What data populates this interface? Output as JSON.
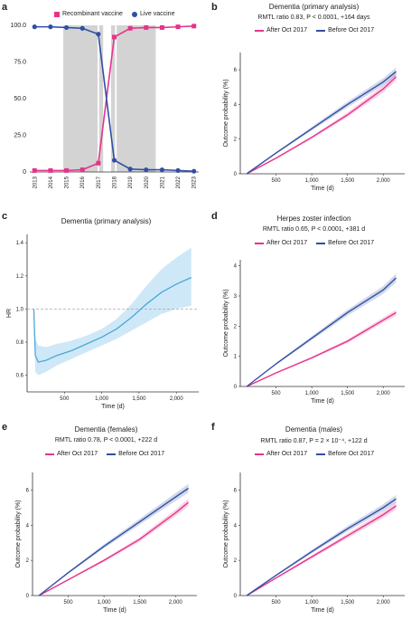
{
  "colors": {
    "recombinant": "#e6338a",
    "live": "#2f4fa3",
    "hr": "#4aa8d8",
    "hr_band": "#cfe8f7",
    "shade": "#d3d3d3"
  },
  "panels": {
    "a": {
      "label": "a"
    },
    "b": {
      "label": "b"
    },
    "c": {
      "label": "c"
    },
    "d": {
      "label": "d"
    },
    "e": {
      "label": "e"
    },
    "f": {
      "label": "f"
    }
  },
  "chart_data": [
    {
      "id": "a",
      "type": "line",
      "series": [
        {
          "name": "Recombinant vaccine",
          "color": "#e6338a",
          "x": [
            2013,
            2014,
            2015,
            2016,
            2017,
            2018,
            2019,
            2020,
            2021,
            2022,
            2023
          ],
          "values": [
            1,
            1,
            1,
            1.5,
            6,
            92,
            98,
            98.5,
            98.5,
            99,
            99.5
          ]
        },
        {
          "name": "Live vaccine",
          "color": "#2f4fa3",
          "x": [
            2013,
            2014,
            2015,
            2016,
            2017,
            2018,
            2019,
            2020,
            2021,
            2022,
            2023
          ],
          "values": [
            99,
            99,
            98.5,
            98,
            94,
            8,
            2,
            1.5,
            1.5,
            1,
            0.5
          ]
        }
      ],
      "shaded_ranges": [
        [
          2014.8,
          2016.95
        ],
        [
          2017.05,
          2017.3
        ],
        [
          2017.8,
          2018.05
        ],
        [
          2018.15,
          2020.6
        ]
      ],
      "xlim": [
        2012.7,
        2023.3
      ],
      "ylim": [
        0,
        100
      ],
      "yticks": [
        "0",
        "25.0",
        "50.0",
        "75.0",
        "100.0"
      ],
      "xticks": [
        "2013",
        "2014",
        "2015",
        "2016",
        "2017",
        "2018",
        "2019",
        "2020",
        "2021",
        "2022",
        "2023"
      ]
    },
    {
      "id": "b",
      "type": "line",
      "title": "Dementia (primary analysis)",
      "stat": "RMTL ratio 0.83, P < 0.0001, +164 days",
      "xlabel": "Time (d)",
      "ylabel": "Outcome probability (%)",
      "xlim": [
        0,
        2300
      ],
      "ylim": [
        0,
        7
      ],
      "xticks": [
        "500",
        "1,000",
        "1,500",
        "2,000"
      ],
      "yticks": [
        "0",
        "2",
        "4",
        "6"
      ],
      "series": [
        {
          "name": "After Oct 2017",
          "x": [
            90,
            500,
            1000,
            1500,
            2000,
            2180
          ],
          "values": [
            0,
            0.9,
            2.1,
            3.4,
            4.9,
            5.6
          ]
        },
        {
          "name": "Before Oct 2017",
          "x": [
            90,
            500,
            1000,
            1500,
            2000,
            2180
          ],
          "values": [
            0,
            1.2,
            2.6,
            4.0,
            5.3,
            5.9
          ]
        }
      ]
    },
    {
      "id": "c",
      "type": "line",
      "title": "Dementia (primary analysis)",
      "xlabel": "Time (d)",
      "ylabel": "HR",
      "xlim": [
        0,
        2300
      ],
      "ylim": [
        0.5,
        1.45
      ],
      "xticks": [
        "500",
        "1,000",
        "1,500",
        "2,000"
      ],
      "yticks": [
        "0.6",
        "0.8",
        "1.0",
        "1.2",
        "1.4"
      ],
      "reference_line": 1.0,
      "series": [
        {
          "name": "HR",
          "x": [
            90,
            110,
            150,
            250,
            400,
            600,
            800,
            1000,
            1200,
            1400,
            1600,
            1800,
            2000,
            2200
          ],
          "values": [
            1.0,
            0.72,
            0.68,
            0.69,
            0.72,
            0.75,
            0.79,
            0.83,
            0.88,
            0.95,
            1.03,
            1.1,
            1.15,
            1.19
          ],
          "lower": [
            1.0,
            0.62,
            0.6,
            0.62,
            0.66,
            0.7,
            0.74,
            0.78,
            0.82,
            0.87,
            0.92,
            0.97,
            1.0,
            1.02
          ],
          "upper": [
            1.0,
            0.82,
            0.78,
            0.77,
            0.79,
            0.81,
            0.84,
            0.88,
            0.94,
            1.03,
            1.14,
            1.24,
            1.31,
            1.37
          ]
        }
      ]
    },
    {
      "id": "d",
      "type": "line",
      "title": "Herpes zoster infection",
      "stat": "RMTL ratio 0.65, P < 0.0001, +381 d",
      "xlabel": "Time (d)",
      "ylabel": "Outcome probability (%)",
      "xlim": [
        0,
        2300
      ],
      "ylim": [
        0,
        4.2
      ],
      "xticks": [
        "500",
        "1,000",
        "1,500",
        "2,000"
      ],
      "yticks": [
        "0",
        "1",
        "2",
        "3",
        "4"
      ],
      "series": [
        {
          "name": "After Oct 2017",
          "x": [
            90,
            500,
            1000,
            1500,
            2000,
            2180
          ],
          "values": [
            0,
            0.45,
            0.95,
            1.5,
            2.2,
            2.45
          ]
        },
        {
          "name": "Before Oct 2017",
          "x": [
            90,
            500,
            1000,
            1500,
            2000,
            2180
          ],
          "values": [
            0,
            0.75,
            1.6,
            2.45,
            3.2,
            3.6
          ]
        }
      ]
    },
    {
      "id": "e",
      "type": "line",
      "title": "Dementia (females)",
      "stat": "RMTL ratio 0.78, P < 0.0001, +222 d",
      "xlabel": "Time (d)",
      "ylabel": "Outcome probability (%)",
      "xlim": [
        0,
        2300
      ],
      "ylim": [
        0,
        7
      ],
      "xticks": [
        "500",
        "1,000",
        "1,500",
        "2,000"
      ],
      "yticks": [
        "0",
        "2",
        "4",
        "6"
      ],
      "series": [
        {
          "name": "After Oct 2017",
          "x": [
            90,
            500,
            1000,
            1500,
            2000,
            2180
          ],
          "values": [
            0,
            0.9,
            2.0,
            3.2,
            4.7,
            5.3
          ]
        },
        {
          "name": "Before Oct 2017",
          "x": [
            90,
            500,
            1000,
            1500,
            2000,
            2180
          ],
          "values": [
            0,
            1.3,
            2.8,
            4.2,
            5.6,
            6.1
          ]
        }
      ]
    },
    {
      "id": "f",
      "type": "line",
      "title": "Dementia (males)",
      "stat": "RMTL ratio 0.87, P = 2 × 10⁻⁴, +122 d",
      "xlabel": "Time (d)",
      "ylabel": "Outcome probability (%)",
      "xlim": [
        0,
        2300
      ],
      "ylim": [
        0,
        7
      ],
      "xticks": [
        "500",
        "1,000",
        "1,500",
        "2,000"
      ],
      "yticks": [
        "0",
        "2",
        "4",
        "6"
      ],
      "series": [
        {
          "name": "After Oct 2017",
          "x": [
            90,
            500,
            1000,
            1500,
            2000,
            2180
          ],
          "values": [
            0,
            1.0,
            2.2,
            3.4,
            4.6,
            5.1
          ]
        },
        {
          "name": "Before Oct 2017",
          "x": [
            90,
            500,
            1000,
            1500,
            2000,
            2180
          ],
          "values": [
            0,
            1.15,
            2.5,
            3.8,
            5.0,
            5.5
          ]
        }
      ]
    }
  ]
}
